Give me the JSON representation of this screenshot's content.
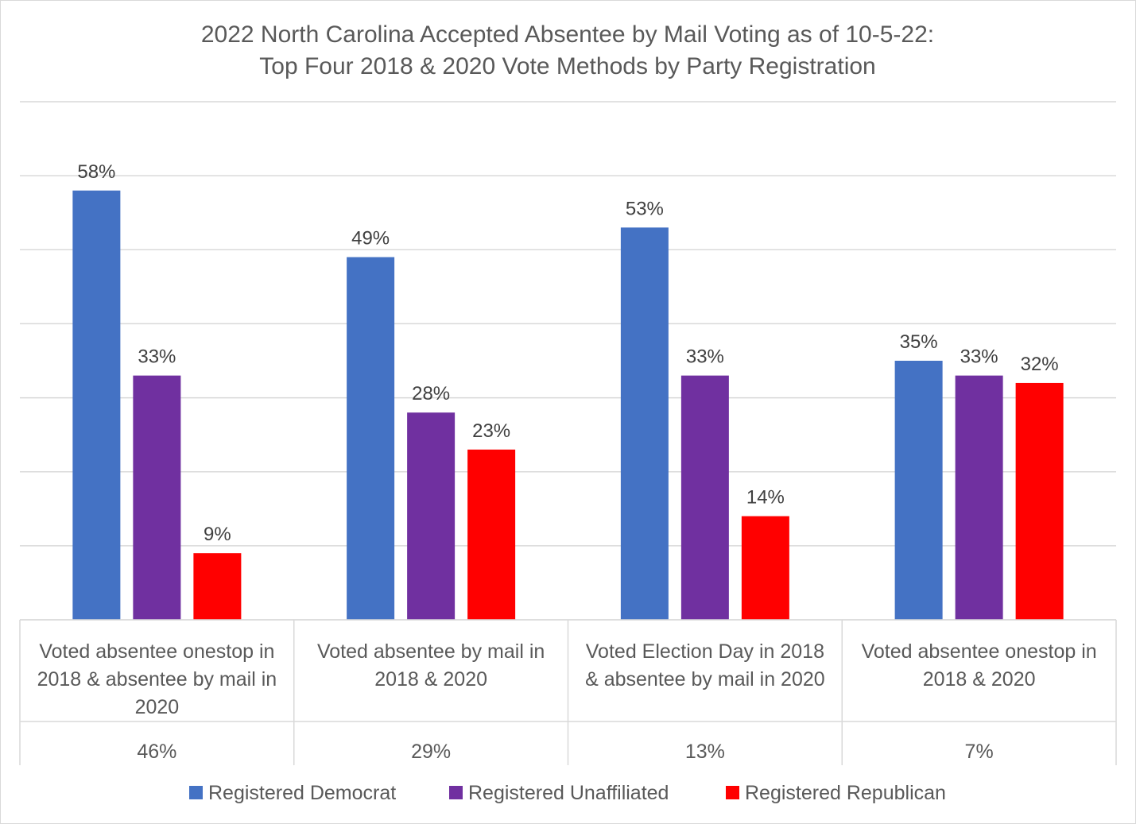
{
  "chart_data": {
    "type": "bar",
    "title": "2022 North Carolina Accepted Absentee by Mail Voting as of 10-5-22:",
    "subtitle": "Top Four 2018 & 2020 Vote Methods by Party Registration",
    "categories": [
      [
        "Voted absentee onestop in",
        "2018 & absentee by mail in",
        "2020"
      ],
      [
        "Voted absentee by mail in",
        "2018 & 2020"
      ],
      [
        "Voted Election Day in 2018",
        "& absentee by mail in 2020"
      ],
      [
        "Voted absentee onestop in",
        "2018 & 2020"
      ]
    ],
    "category_shares": [
      "46%",
      "29%",
      "13%",
      "7%"
    ],
    "series": [
      {
        "name": "Registered Democrat",
        "color": "#4472C4",
        "values": [
          58,
          49,
          53,
          35
        ],
        "labels": [
          "58%",
          "49%",
          "53%",
          "35%"
        ]
      },
      {
        "name": "Registered Unaffiliated",
        "color": "#7030A0",
        "values": [
          33,
          28,
          33,
          33
        ],
        "labels": [
          "33%",
          "28%",
          "33%",
          "33%"
        ]
      },
      {
        "name": "Registered Republican",
        "color": "#FF0000",
        "values": [
          9,
          23,
          14,
          32
        ],
        "labels": [
          "9%",
          "23%",
          "14%",
          "32%"
        ]
      }
    ],
    "ylim": [
      0,
      70
    ],
    "grid": true,
    "legend": "bottom"
  }
}
